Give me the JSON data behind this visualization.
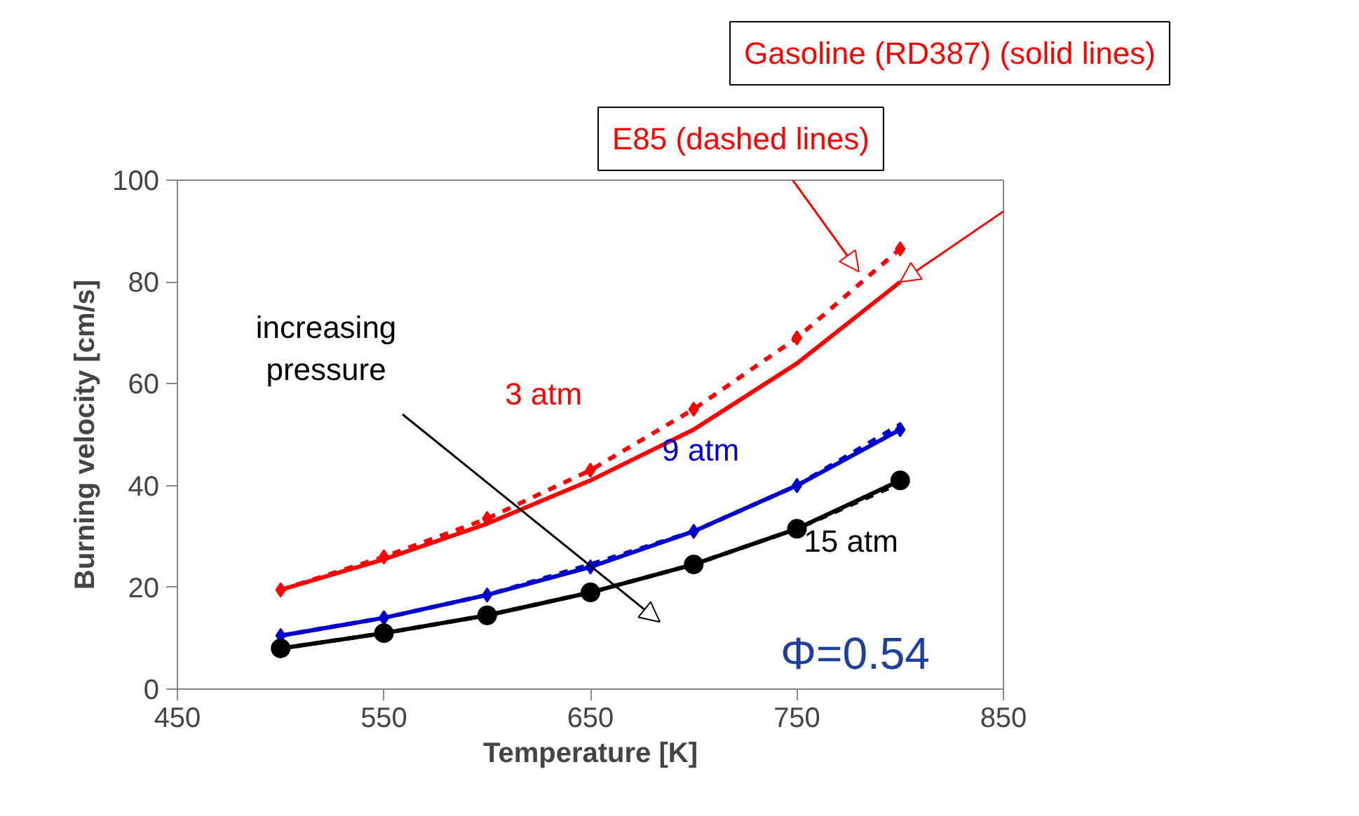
{
  "chart_data": {
    "type": "line",
    "xlabel": "Temperature [K]",
    "ylabel": "Burning velocity [cm/s]",
    "x": [
      500,
      550,
      600,
      650,
      700,
      750,
      800
    ],
    "xlim": [
      450,
      850
    ],
    "xticks": [
      450,
      550,
      650,
      750,
      850
    ],
    "ylim": [
      0,
      100
    ],
    "yticks": [
      0,
      20,
      40,
      60,
      80,
      100
    ],
    "series": [
      {
        "name": "3 atm",
        "color": "#ff0000",
        "line_style": "solid",
        "marker": "none",
        "values": [
          19.5,
          25.5,
          32.5,
          41,
          51,
          64,
          80
        ]
      },
      {
        "color": "#ff0000",
        "line_style": "dashed",
        "marker": "diamond",
        "values": [
          19.5,
          26,
          33.5,
          43,
          55,
          69,
          86.5
        ]
      },
      {
        "name": "9 atm",
        "color": "#0000cc",
        "line_style": "solid",
        "marker": "diamond",
        "values": [
          10.5,
          14,
          18.5,
          24,
          31,
          40,
          51
        ]
      },
      {
        "color": "#0000cc",
        "line_style": "dashed",
        "marker": "none",
        "values": [
          10.5,
          14,
          18.5,
          24.5,
          31,
          40,
          52
        ]
      },
      {
        "name": "15 atm",
        "color": "#000000",
        "line_style": "solid",
        "marker": "circle",
        "values": [
          8,
          11,
          14.5,
          19,
          24.5,
          31.5,
          41
        ]
      },
      {
        "color": "#000000",
        "line_style": "dashed",
        "marker": "none",
        "values": [
          8,
          11,
          14.5,
          19,
          24.5,
          31.5,
          40.5
        ]
      }
    ],
    "annotations": [
      {
        "text": "Gasoline (RD387) (solid lines)",
        "x": 800,
        "y": 80
      },
      "E85 (dashed lines)",
      "increasing\npressure",
      "Φ=0.54"
    ]
  }
}
